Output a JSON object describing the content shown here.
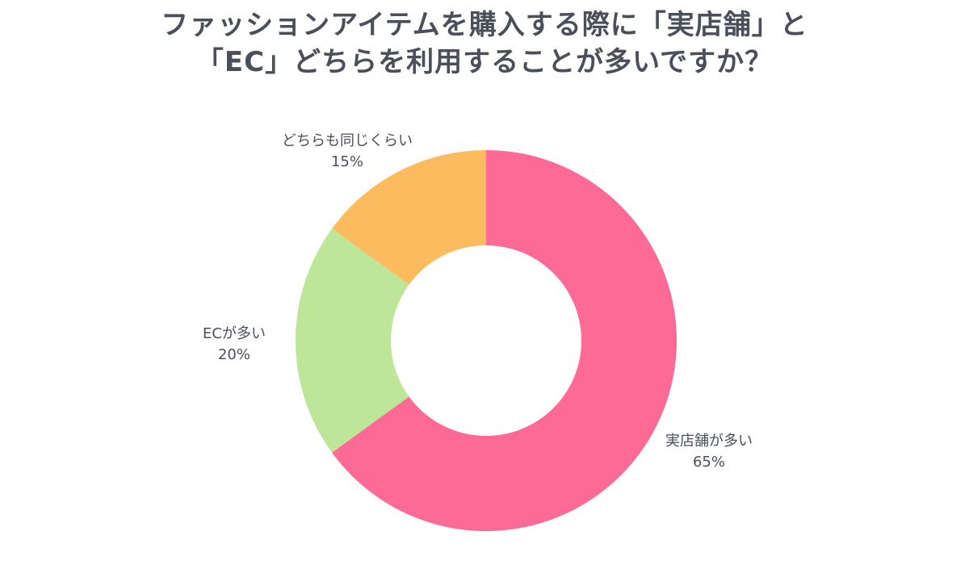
{
  "chart_data": {
    "type": "pie",
    "title": [
      "ファッションアイテムを購入する際に「実店舗」と",
      "「EC」どちらを利用することが多いですか？"
    ],
    "donut": true,
    "slices": [
      {
        "label": "実店舗が多い",
        "value": 65,
        "value_label": "65%",
        "color": "#fe6a96"
      },
      {
        "label": "ECが多い",
        "value": 20,
        "value_label": "20%",
        "color": "#bde699"
      },
      {
        "label": "どちらも同じくらい",
        "value": 15,
        "value_label": "15%",
        "color": "#fdbb5f"
      }
    ],
    "start_angle": "12 o'clock",
    "direction": "clockwise",
    "legend": "none"
  }
}
